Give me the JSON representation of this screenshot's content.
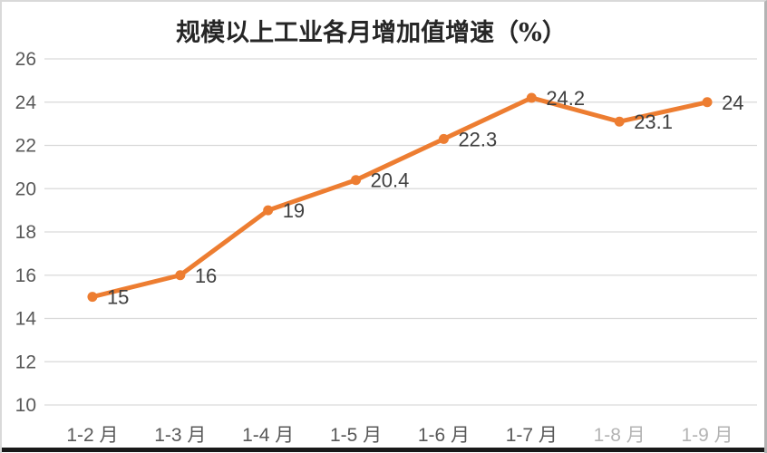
{
  "chart_data": {
    "type": "line",
    "title": "规模以上工业各月增加值增速（%）",
    "categories": [
      "1-2 月",
      "1-3 月",
      "1-4 月",
      "1-5 月",
      "1-6 月",
      "1-7 月",
      "1-8 月",
      "1-9 月"
    ],
    "values": [
      15,
      16,
      19,
      20.4,
      22.3,
      24.2,
      23.1,
      24
    ],
    "data_labels": [
      "15",
      "16",
      "19",
      "20.4",
      "22.3",
      "24.2",
      "23.1",
      "24"
    ],
    "faded_category_indices": [
      6,
      7
    ],
    "y_ticks": [
      26,
      24,
      22,
      20,
      18,
      16,
      14,
      12,
      10
    ],
    "ylim": [
      10,
      26
    ],
    "xlabel": "",
    "ylabel": "",
    "grid": true,
    "legend_position": "none",
    "colors": {
      "line": "#ED7D31",
      "marker": "#ED7D31",
      "data_label": "#3F3F3F",
      "axis_label": "#595959",
      "gridline": "#D9D9D9",
      "title": "#262626"
    }
  }
}
